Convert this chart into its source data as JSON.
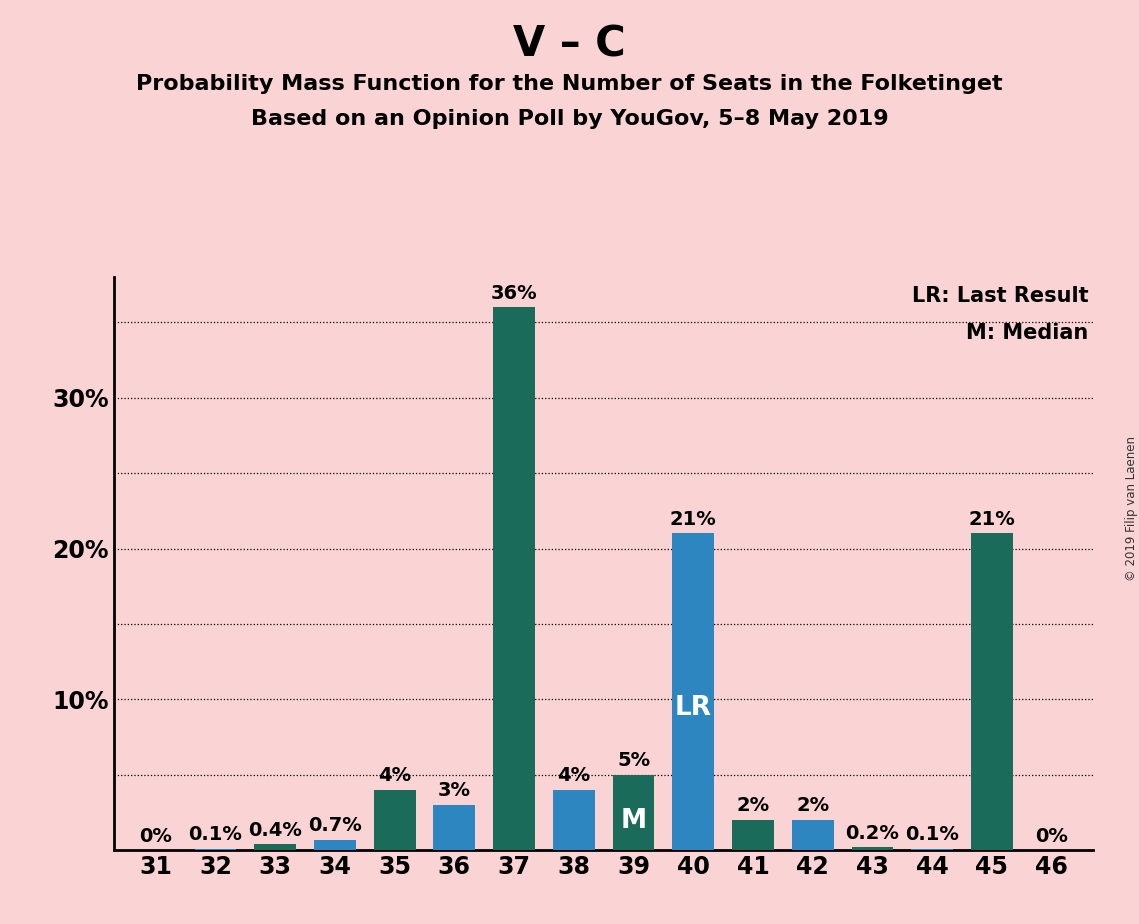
{
  "title1": "V – C",
  "subtitle1": "Probability Mass Function for the Number of Seats in the Folketinget",
  "subtitle2": "Based on an Opinion Poll by YouGov, 5–8 May 2019",
  "copyright": "© 2019 Filip van Laenen",
  "seats": [
    31,
    32,
    33,
    34,
    35,
    36,
    37,
    38,
    39,
    40,
    41,
    42,
    43,
    44,
    45,
    46
  ],
  "values": [
    0.0,
    0.1,
    0.4,
    0.7,
    4.0,
    3.0,
    36.0,
    4.0,
    5.0,
    21.0,
    2.0,
    2.0,
    0.2,
    0.1,
    21.0,
    0.0
  ],
  "labels": [
    "0%",
    "0.1%",
    "0.4%",
    "0.7%",
    "4%",
    "3%",
    "36%",
    "4%",
    "5%",
    "21%",
    "2%",
    "2%",
    "0.2%",
    "0.1%",
    "21%",
    "0%"
  ],
  "colors": [
    "#1a6b5a",
    "#2e86c1",
    "#1a6b5a",
    "#2e86c1",
    "#1a6b5a",
    "#2e86c1",
    "#1a6b5a",
    "#2e86c1",
    "#1a6b5a",
    "#2e86c1",
    "#1a6b5a",
    "#2e86c1",
    "#1a6b5a",
    "#2e86c1",
    "#1a6b5a",
    "#2e86c1"
  ],
  "background_color": "#fad4d4",
  "ylim": [
    0,
    38
  ],
  "ytick_positions": [
    10,
    20,
    30
  ],
  "ytick_labels": [
    "10%",
    "20%",
    "30%"
  ],
  "grid_y": [
    5,
    10,
    15,
    20,
    25,
    30,
    35
  ],
  "LR_seat": 40,
  "M_seat": 39,
  "legend_lr": "LR: Last Result",
  "legend_m": "M: Median",
  "bar_width": 0.7,
  "title1_fontsize": 30,
  "subtitle_fontsize": 16,
  "tick_fontsize": 17,
  "label_fontsize": 14
}
